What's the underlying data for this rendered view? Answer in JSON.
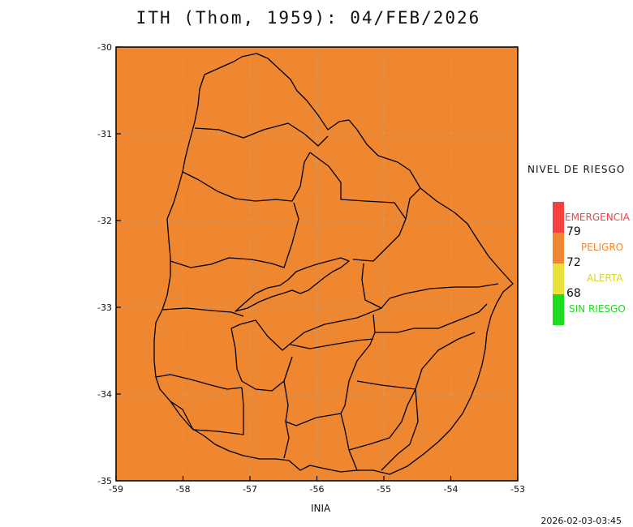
{
  "title": "ITH (Thom, 1959): 04/FEB/2026",
  "x_axis_label": "INIA",
  "timestamp": "2026-02-03-03:45",
  "map": {
    "fill_color": "#ef8730",
    "lon_range": [
      -59,
      -53
    ],
    "lat_range": [
      -35,
      -30
    ],
    "x_ticks": [
      "-59",
      "-58",
      "-57",
      "-56",
      "-55",
      "-54",
      "-53"
    ],
    "y_ticks": [
      "-30",
      "-31",
      "-32",
      "-33",
      "-34",
      "-35"
    ],
    "grid": "dashed"
  },
  "legend": {
    "title": "NIVEL DE RIESGO",
    "categories": [
      {
        "label": "EMERGENCIA",
        "color": "#f4403f"
      },
      {
        "label": "PELIGRO",
        "color": "#ef8730"
      },
      {
        "label": "ALERTA",
        "color": "#e8e23a"
      },
      {
        "label": "SIN RIESGO",
        "color": "#1ddc1d"
      }
    ],
    "thresholds": [
      "79",
      "72",
      "68"
    ]
  }
}
